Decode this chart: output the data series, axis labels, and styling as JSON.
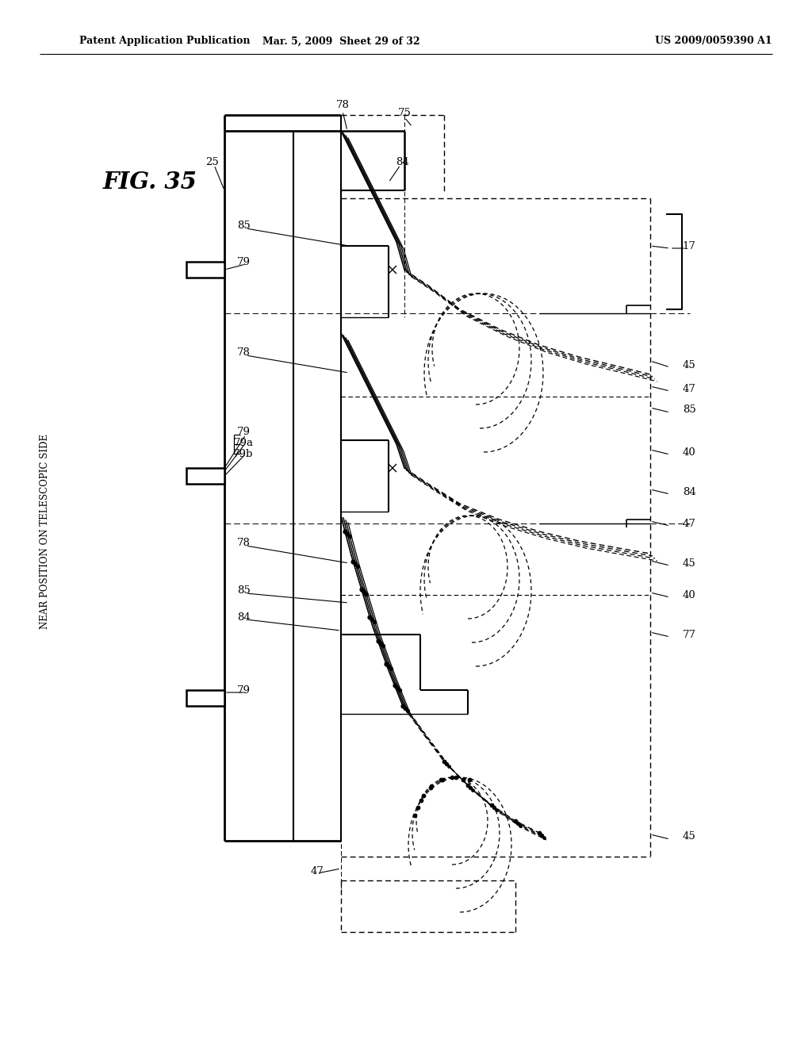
{
  "header_left": "Patent Application Publication",
  "header_center": "Mar. 5, 2009  Sheet 29 of 32",
  "header_right": "US 2009/0059390 A1",
  "fig_label": "FIG. 35",
  "side_label": "NEAR POSITION ON TELESCOPIC SIDE",
  "background_color": "#ffffff",
  "line_color": "#000000"
}
